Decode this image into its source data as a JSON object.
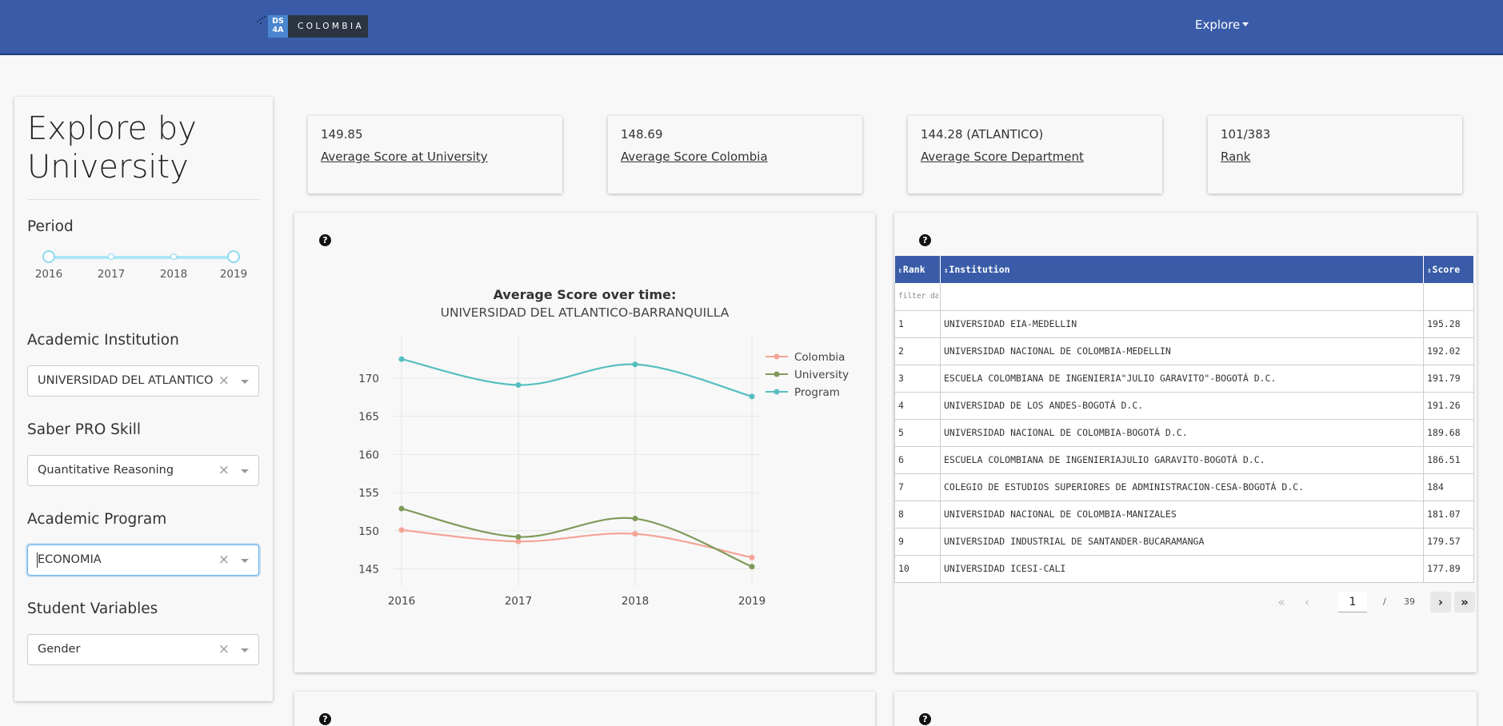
{
  "navbar": {
    "logo_mark_top": "DS",
    "logo_mark_bottom": "4A",
    "logo_text": "COLOMBIA",
    "explore_label": "Explore",
    "background": "#3a5ca8"
  },
  "sidebar": {
    "title": "Explore by University",
    "period_label": "Period",
    "period_years": [
      "2016",
      "2017",
      "2018",
      "2019"
    ],
    "period_selected": [
      "2016",
      "2019"
    ],
    "institution_label": "Academic Institution",
    "institution_value": "UNIVERSIDAD DEL ATLANTICO-...",
    "skill_label": "Saber PRO Skill",
    "skill_value": "Quantitative Reasoning",
    "program_label": "Academic Program",
    "program_value": "ECONOMIA",
    "student_label": "Student Variables",
    "student_value": "Gender",
    "clear_glyph": "×"
  },
  "stats": [
    {
      "value": "149.85",
      "label": "Average Score at University"
    },
    {
      "value": "148.69",
      "label": "Average Score Colombia"
    },
    {
      "value": "144.28 (ATLANTICO)",
      "label": "Average Score Department"
    },
    {
      "value": "101/383",
      "label": "Rank"
    }
  ],
  "help_glyph": "?",
  "chart_data": {
    "type": "line",
    "title": "Average Score over time:",
    "subtitle": "UNIVERSIDAD DEL ATLANTICO-BARRANQUILLA",
    "x": [
      "2016",
      "2017",
      "2018",
      "2019"
    ],
    "y_ticks": [
      145,
      150,
      155,
      160,
      165,
      170
    ],
    "ylim": [
      143.8,
      174.5
    ],
    "grid": true,
    "legend_position": "top-right",
    "series": [
      {
        "name": "Colombia",
        "color": "#f4a497",
        "values": [
          150.1,
          148.6,
          149.6,
          146.5
        ]
      },
      {
        "name": "University",
        "color": "#7f9a5a",
        "values": [
          152.9,
          149.2,
          151.6,
          145.3
        ]
      },
      {
        "name": "Program",
        "color": "#56bec0",
        "values": [
          172.5,
          169.1,
          171.8,
          167.6
        ]
      }
    ]
  },
  "table": {
    "headers": [
      "Rank",
      "Institution",
      "Score"
    ],
    "sort_glyph": "⇕",
    "filter_placeholder": "filter data...",
    "rows": [
      [
        "1",
        "UNIVERSIDAD EIA-MEDELLIN",
        "195.28"
      ],
      [
        "2",
        "UNIVERSIDAD NACIONAL DE COLOMBIA-MEDELLIN",
        "192.02"
      ],
      [
        "3",
        "ESCUELA COLOMBIANA DE INGENIERIA\"JULIO GARAVITO\"-BOGOTÁ D.C.",
        "191.79"
      ],
      [
        "4",
        "UNIVERSIDAD DE LOS ANDES-BOGOTÁ D.C.",
        "191.26"
      ],
      [
        "5",
        "UNIVERSIDAD NACIONAL DE COLOMBIA-BOGOTÁ D.C.",
        "189.68"
      ],
      [
        "6",
        "ESCUELA COLOMBIANA DE INGENIERIAJULIO GARAVITO-BOGOTÁ D.C.",
        "186.51"
      ],
      [
        "7",
        "COLEGIO DE ESTUDIOS SUPERIORES DE ADMINISTRACION-CESA-BOGOTÁ D.C.",
        "184"
      ],
      [
        "8",
        "UNIVERSIDAD NACIONAL DE COLOMBIA-MANIZALES",
        "181.07"
      ],
      [
        "9",
        "UNIVERSIDAD INDUSTRIAL DE SANTANDER-BUCARAMANGA",
        "179.57"
      ],
      [
        "10",
        "UNIVERSIDAD ICESI-CALI",
        "177.89"
      ]
    ]
  },
  "pager": {
    "first": "«",
    "prev": "‹",
    "current": "1",
    "separator": "/",
    "total": "39",
    "next": "›",
    "last": "»"
  }
}
